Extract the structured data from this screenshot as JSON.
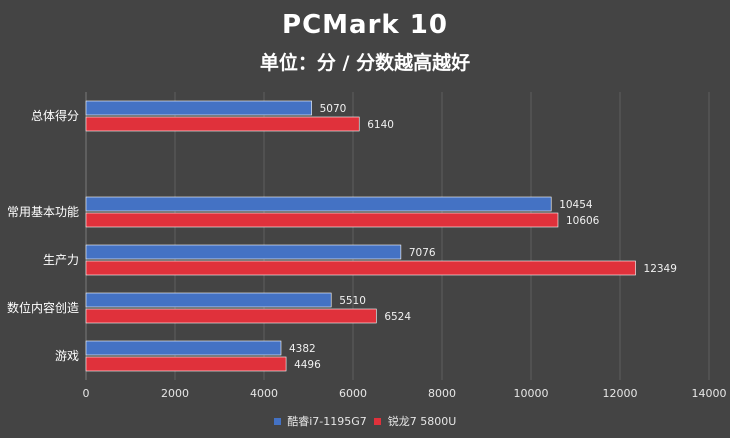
{
  "chart_data": {
    "type": "bar",
    "orientation": "horizontal",
    "title": "PCMark 10",
    "subtitle": "单位：分 / 分数越高越好",
    "categories": [
      "总体得分",
      "",
      "常用基本功能",
      "生产力",
      "数位内容创造",
      "游戏"
    ],
    "series": [
      {
        "name": "酷睿i7-1195G7",
        "color": "#4472c4",
        "values": [
          5070,
          null,
          10454,
          7076,
          5510,
          4382
        ]
      },
      {
        "name": "锐龙7 5800U",
        "color": "#e0313b",
        "values": [
          6140,
          null,
          10606,
          12349,
          6524,
          4496
        ]
      }
    ],
    "xlim": [
      0,
      14000
    ],
    "xticks": [
      0,
      2000,
      4000,
      6000,
      8000,
      10000,
      12000,
      14000
    ],
    "grid": true,
    "legend_position": "bottom"
  }
}
